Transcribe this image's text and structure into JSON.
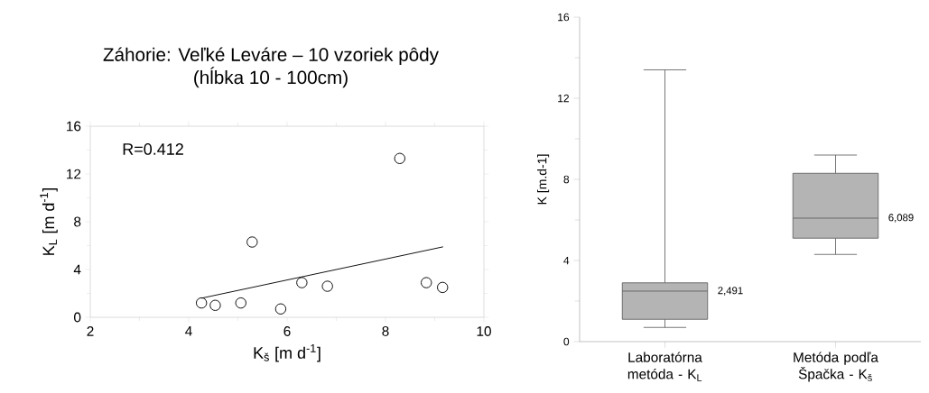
{
  "chart_data": [
    {
      "type": "scatter",
      "title": "Záhorie: Veľké Leváre – 10 vzoriek pôdy (hĺbka 10 - 100cm)",
      "xlabel": "K$_{š}$ [m d$^{-1}$]",
      "ylabel": "K$_{L}$ [m d$^{-1}$]",
      "xlim": [
        2,
        10
      ],
      "ylim": [
        0,
        16
      ],
      "xticks": [
        2,
        4,
        6,
        8,
        10
      ],
      "yticks": [
        0,
        4,
        8,
        12,
        16
      ],
      "marker": "circle",
      "annotations": [
        "R=0.412"
      ],
      "series": [
        {
          "type": "scatter",
          "color": "#000000",
          "x": [
            4.26,
            4.54,
            5.06,
            5.29,
            5.87,
            6.3,
            6.82,
            8.29,
            8.83,
            9.16
          ],
          "values": [
            1.2,
            1.0,
            1.2,
            6.3,
            0.7,
            2.9,
            2.6,
            13.3,
            2.9,
            2.5
          ]
        },
        {
          "type": "line",
          "color": "#000000",
          "marker": "none",
          "x": [
            4.26,
            9.17
          ],
          "values": [
            1.6,
            5.9
          ]
        }
      ]
    },
    {
      "type": "box",
      "ylabel": "K [m.d-1]",
      "categories": [
        "Laboratórna metóda - K$_{L}$",
        "Metóda podľa Špačka - K$_{š}$"
      ],
      "color": "#b4b4b4",
      "ylim": [
        0,
        16
      ],
      "yticks": [
        0,
        4,
        8,
        12,
        16
      ],
      "boxes": [
        {
          "low": 0.7,
          "q1": 1.1,
          "median": 2.491,
          "q3": 2.9,
          "high": 13.4
        },
        {
          "low": 4.3,
          "q1": 5.1,
          "median": 6.089,
          "q3": 8.3,
          "high": 9.2
        }
      ],
      "annotations": [
        "2,491",
        "6,089"
      ]
    }
  ]
}
